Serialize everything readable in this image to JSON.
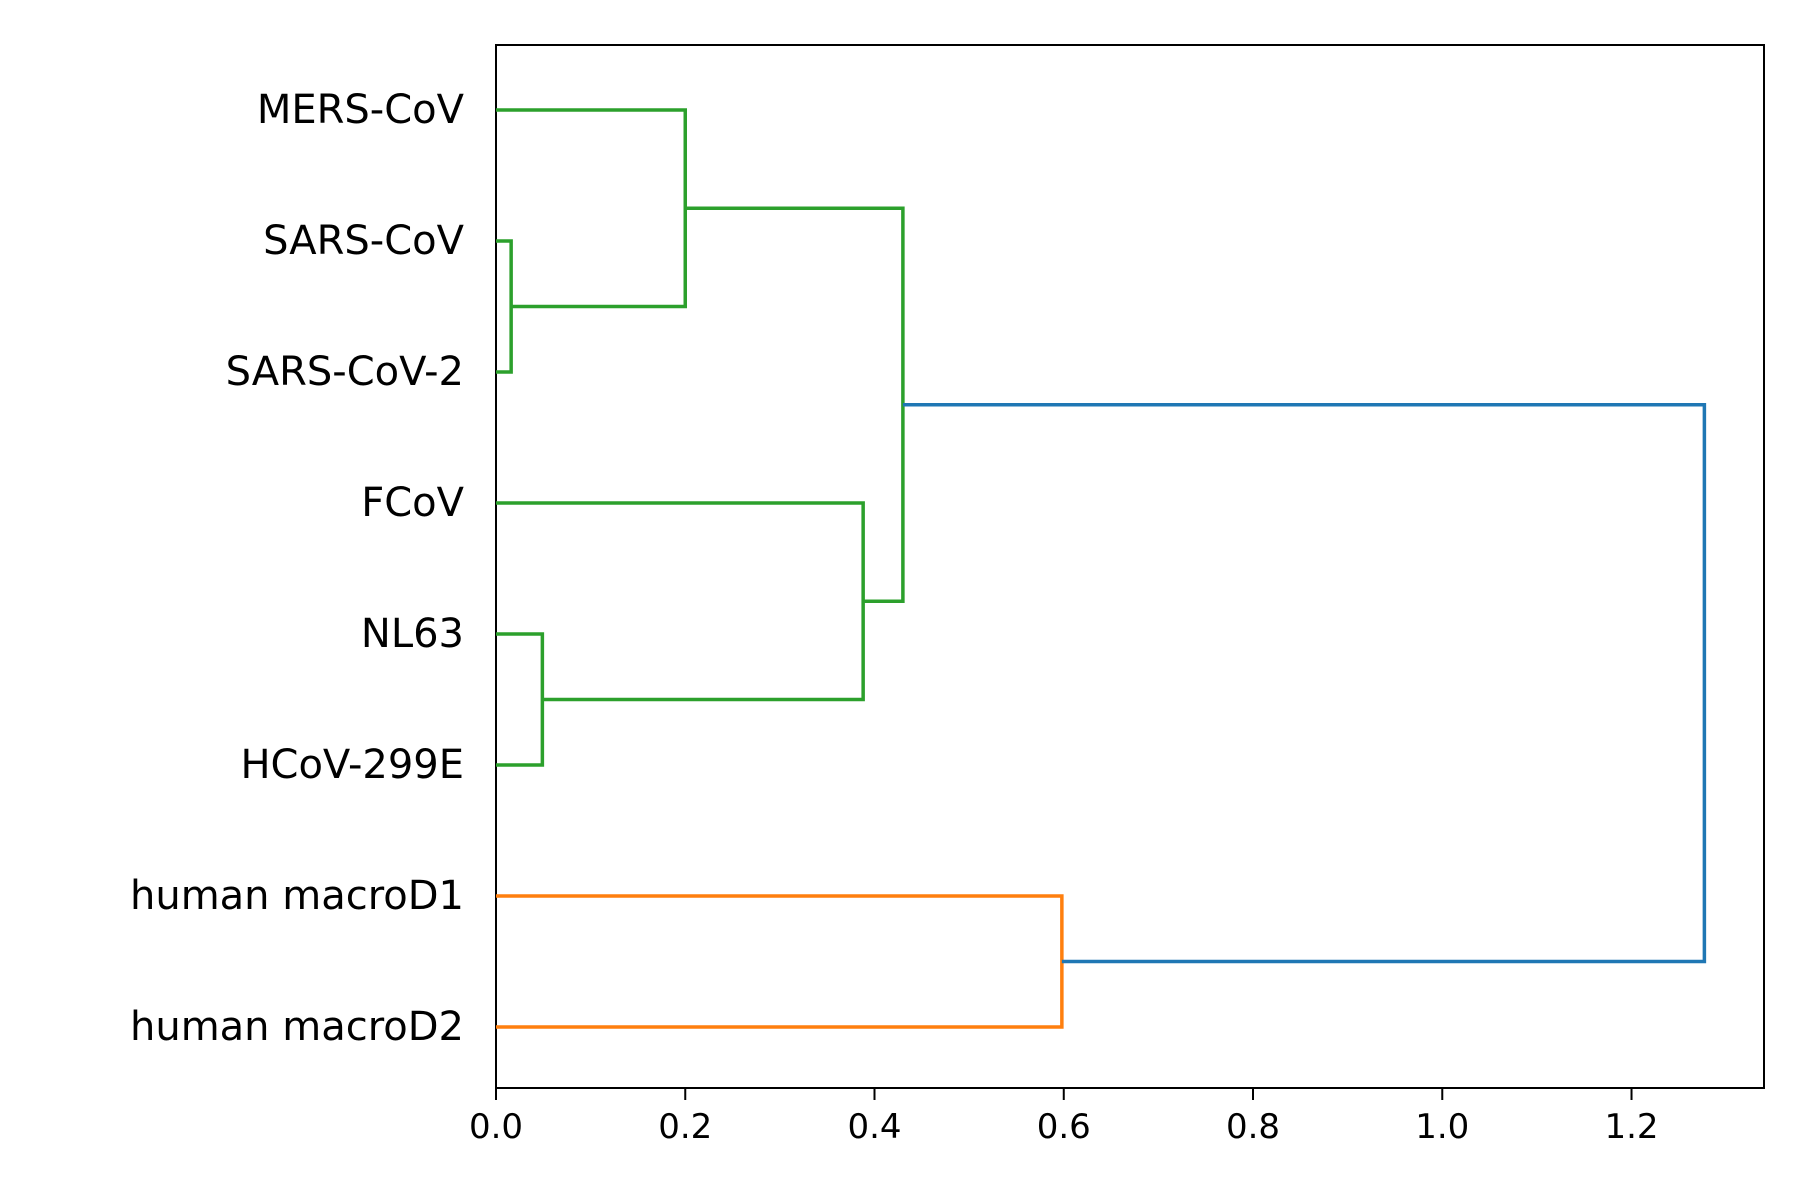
{
  "chart_data": {
    "type": "dendrogram",
    "orientation": "horizontal",
    "title": "",
    "xlabel": "",
    "ylabel": "",
    "xlim": [
      0,
      1.34
    ],
    "xticks": [
      0.0,
      0.2,
      0.4,
      0.6,
      0.8,
      1.0,
      1.2
    ],
    "xtick_labels": [
      "0.0",
      "0.2",
      "0.4",
      "0.6",
      "0.8",
      "1.0",
      "1.2"
    ],
    "leaves": [
      "MERS-CoV",
      "SARS-CoV",
      "SARS-CoV-2",
      "FCoV",
      "NL63",
      "HCoV-299E",
      "human macroD1",
      "human macroD2"
    ],
    "merges": [
      {
        "children": [
          "SARS-CoV",
          "SARS-CoV-2"
        ],
        "distance": 0.016,
        "color": "#2ca02c"
      },
      {
        "children": [
          "NL63",
          "HCoV-299E"
        ],
        "distance": 0.049,
        "color": "#2ca02c"
      },
      {
        "children": [
          "MERS-CoV",
          "SARS-CoV + SARS-CoV-2"
        ],
        "distance": 0.2,
        "color": "#2ca02c"
      },
      {
        "children": [
          "FCoV",
          "NL63 + HCoV-299E"
        ],
        "distance": 0.388,
        "color": "#2ca02c"
      },
      {
        "children": [
          "MERS-CoV group",
          "FCoV group"
        ],
        "distance": 0.43,
        "color": "#2ca02c"
      },
      {
        "children": [
          "human macroD1",
          "human macroD2"
        ],
        "distance": 0.598,
        "color": "#ff7f0e"
      },
      {
        "children": [
          "viral cluster",
          "human cluster"
        ],
        "distance": 1.277,
        "color": "#1f77b4"
      }
    ],
    "grid": false
  },
  "colors": {
    "viral_cluster": "#2ca02c",
    "human_cluster": "#ff7f0e",
    "root_link": "#1f77b4"
  }
}
